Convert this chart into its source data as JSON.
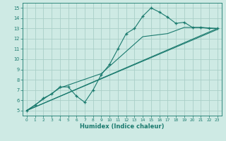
{
  "xlabel": "Humidex (Indice chaleur)",
  "xlim": [
    -0.5,
    23.5
  ],
  "ylim": [
    4.5,
    15.5
  ],
  "xticks": [
    0,
    1,
    2,
    3,
    4,
    5,
    6,
    7,
    8,
    9,
    10,
    11,
    12,
    13,
    14,
    15,
    16,
    17,
    18,
    19,
    20,
    21,
    22,
    23
  ],
  "yticks": [
    5,
    6,
    7,
    8,
    9,
    10,
    11,
    12,
    13,
    14,
    15
  ],
  "bg_color": "#ceeae4",
  "grid_color": "#aacfc8",
  "line_color": "#1a7a6e",
  "line1_x": [
    0,
    1,
    2,
    3,
    4,
    5,
    6,
    7,
    8,
    9,
    10,
    11,
    12,
    13,
    14,
    15,
    16,
    17,
    18,
    19,
    20,
    21,
    22,
    23
  ],
  "line1_y": [
    5.0,
    5.5,
    6.2,
    6.6,
    7.3,
    7.3,
    6.4,
    5.8,
    7.0,
    8.5,
    9.5,
    11.0,
    12.5,
    13.0,
    14.2,
    15.0,
    14.6,
    14.1,
    13.5,
    13.6,
    13.1,
    13.1,
    13.0,
    13.0
  ],
  "line2_x": [
    0,
    23
  ],
  "line2_y": [
    5.0,
    13.0
  ],
  "line3_x": [
    0,
    23
  ],
  "line3_y": [
    5.0,
    12.9
  ],
  "line4_x": [
    0,
    4,
    9,
    14,
    17,
    19,
    21,
    23
  ],
  "line4_y": [
    5.0,
    7.2,
    8.6,
    12.2,
    12.5,
    13.1,
    13.1,
    13.0
  ]
}
